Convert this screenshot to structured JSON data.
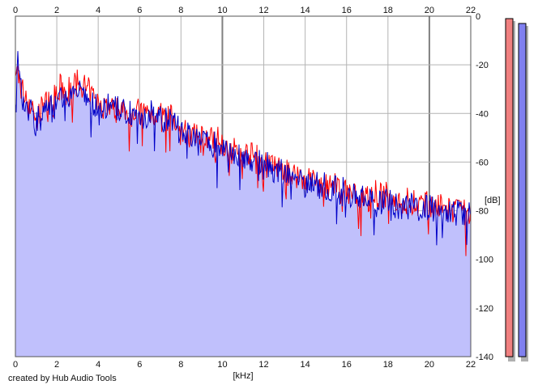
{
  "credit": "created by Hub Audio Tools",
  "chart_data": {
    "type": "line",
    "xlabel": "[kHz]",
    "ylabel": "[dB]",
    "x_ticks": [
      0,
      2,
      4,
      6,
      8,
      10,
      12,
      14,
      16,
      18,
      20,
      22
    ],
    "y_ticks": [
      0,
      -20,
      -40,
      -60,
      -80,
      -100,
      -120,
      -140
    ],
    "xlim": [
      0,
      22
    ],
    "ylim": [
      -140,
      0
    ],
    "grid": true,
    "fill_color": "#c0c0fc",
    "series": [
      {
        "color": "#ff0000",
        "x": [
          0,
          0.1,
          0.3,
          0.5,
          0.8,
          1.0,
          1.2,
          1.5,
          1.8,
          2.0,
          2.2,
          2.5,
          2.8,
          3.0,
          3.3,
          3.6,
          4.0,
          4.5,
          5.0,
          5.5,
          6.0,
          6.5,
          7.0,
          7.5,
          8.0,
          8.5,
          9.0,
          9.5,
          10.0,
          10.5,
          11.0,
          11.5,
          12.0,
          12.5,
          13.0,
          13.5,
          14.0,
          14.5,
          15.0,
          15.5,
          16.0,
          16.5,
          17.0,
          17.5,
          18.0,
          18.5,
          19.0,
          19.5,
          20.0,
          20.5,
          21.0,
          21.5,
          22.0
        ],
        "values": [
          -28,
          -22,
          -30,
          -33,
          -38,
          -43,
          -39,
          -35,
          -36,
          -33,
          -30,
          -31,
          -29,
          -28,
          -30,
          -32,
          -36,
          -37,
          -38,
          -39,
          -40,
          -40,
          -41,
          -42,
          -48,
          -49,
          -50,
          -50,
          -52,
          -55,
          -57,
          -58,
          -60,
          -62,
          -64,
          -65,
          -67,
          -68,
          -70,
          -71,
          -72,
          -73,
          -74,
          -74,
          -75,
          -76,
          -77,
          -77,
          -78,
          -79,
          -80,
          -80,
          -81
        ]
      },
      {
        "color": "#0000c8",
        "x": [
          0,
          0.1,
          0.3,
          0.5,
          0.8,
          1.0,
          1.2,
          1.5,
          1.8,
          2.0,
          2.2,
          2.5,
          2.8,
          3.0,
          3.3,
          3.6,
          4.0,
          4.5,
          5.0,
          5.5,
          6.0,
          6.5,
          7.0,
          7.5,
          8.0,
          8.5,
          9.0,
          9.5,
          10.0,
          10.5,
          11.0,
          11.5,
          12.0,
          12.5,
          13.0,
          13.5,
          14.0,
          14.5,
          15.0,
          15.5,
          16.0,
          16.5,
          17.0,
          17.5,
          18.0,
          18.5,
          19.0,
          19.5,
          20.0,
          20.5,
          21.0,
          21.5,
          22.0
        ],
        "values": [
          -30,
          -20,
          -32,
          -36,
          -40,
          -45,
          -41,
          -38,
          -38,
          -35,
          -33,
          -34,
          -32,
          -31,
          -33,
          -35,
          -38,
          -38,
          -39,
          -40,
          -41,
          -41,
          -42,
          -43,
          -48,
          -50,
          -51,
          -52,
          -54,
          -56,
          -58,
          -60,
          -62,
          -63,
          -65,
          -66,
          -68,
          -69,
          -71,
          -72,
          -73,
          -74,
          -75,
          -75,
          -76,
          -77,
          -78,
          -78,
          -79,
          -80,
          -81,
          -81,
          -83
        ]
      }
    ],
    "meters": [
      {
        "color": "#f08080",
        "value": -1
      },
      {
        "color": "#8080f0",
        "value": -3
      }
    ]
  }
}
